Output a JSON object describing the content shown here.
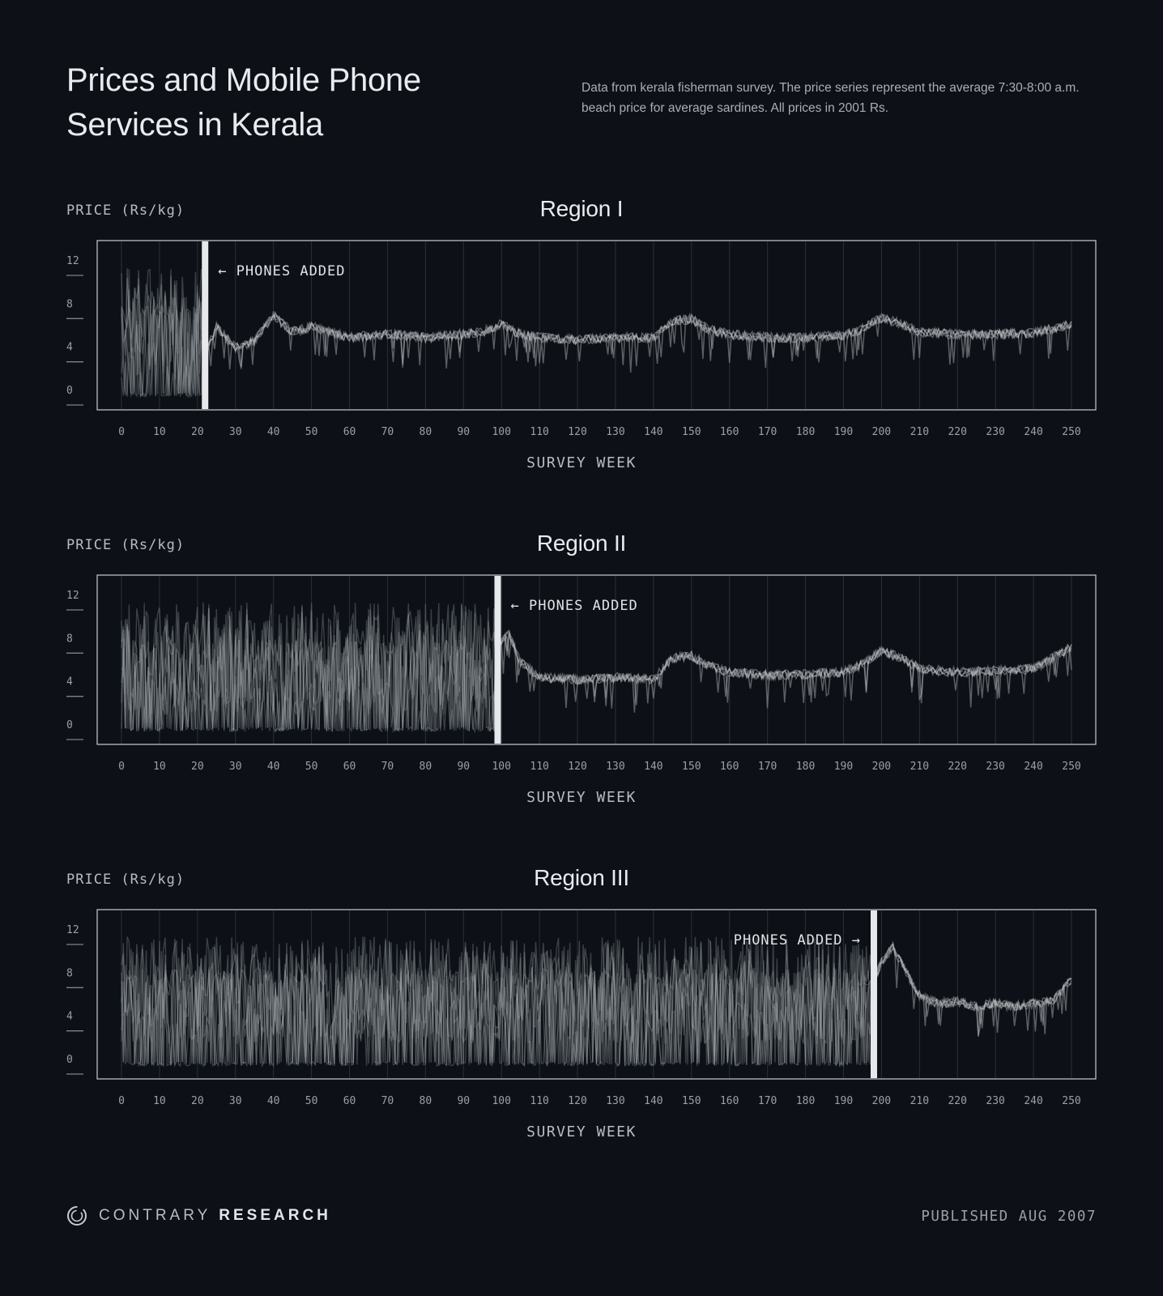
{
  "header": {
    "title": "Prices and Mobile Phone Services in Kerala",
    "subtitle": "Data from kerala fisherman survey. The price series represent the average 7:30-8:00 a.m. beach price for average sardines. All prices in 2001 Rs."
  },
  "chart_data": [
    {
      "type": "line",
      "title": "Region I",
      "ylabel": "PRICE (Rs/kg)",
      "xlabel": "SURVEY WEEK",
      "xlim": [
        0,
        250
      ],
      "ylim": [
        0,
        12
      ],
      "yticks": [
        0,
        4,
        8,
        12
      ],
      "xticks": [
        0,
        10,
        20,
        30,
        40,
        50,
        60,
        70,
        80,
        90,
        100,
        110,
        120,
        130,
        140,
        150,
        160,
        170,
        180,
        190,
        200,
        210,
        220,
        230,
        240,
        250
      ],
      "grid": true,
      "annotation": {
        "text": "← PHONES ADDED",
        "x": 22,
        "side": "right"
      },
      "before": {
        "x_end": 22,
        "range_min": 0,
        "range_max": 12,
        "mean": 5.0
      },
      "after": {
        "x": [
          22,
          25,
          30,
          35,
          40,
          45,
          50,
          60,
          70,
          80,
          90,
          95,
          100,
          105,
          110,
          120,
          130,
          140,
          145,
          150,
          155,
          160,
          170,
          180,
          190,
          195,
          200,
          205,
          210,
          220,
          230,
          240,
          250
        ],
        "y": [
          4.0,
          6.5,
          4.5,
          5.2,
          7.5,
          6.0,
          6.5,
          5.5,
          5.8,
          5.5,
          5.8,
          6.0,
          6.8,
          5.8,
          5.5,
          5.3,
          5.5,
          5.5,
          7.0,
          7.2,
          6.2,
          5.8,
          5.5,
          5.5,
          5.7,
          6.3,
          7.3,
          6.8,
          6.0,
          5.8,
          5.8,
          5.9,
          6.8
        ]
      }
    },
    {
      "type": "line",
      "title": "Region II",
      "ylabel": "PRICE (Rs/kg)",
      "xlabel": "SURVEY WEEK",
      "xlim": [
        0,
        250
      ],
      "ylim": [
        0,
        12
      ],
      "yticks": [
        0,
        4,
        8,
        12
      ],
      "xticks": [
        0,
        10,
        20,
        30,
        40,
        50,
        60,
        70,
        80,
        90,
        100,
        110,
        120,
        130,
        140,
        150,
        160,
        170,
        180,
        190,
        200,
        210,
        220,
        230,
        240,
        250
      ],
      "grid": true,
      "annotation": {
        "text": "← PHONES ADDED",
        "x": 99,
        "side": "right"
      },
      "before": {
        "x_end": 99,
        "range_min": 0,
        "range_max": 12,
        "mean": 5.0
      },
      "after": {
        "x": [
          99,
          102,
          105,
          110,
          120,
          130,
          140,
          145,
          150,
          155,
          160,
          170,
          180,
          190,
          195,
          200,
          205,
          210,
          220,
          230,
          240,
          250
        ],
        "y": [
          8.0,
          9.0,
          6.5,
          5.0,
          4.8,
          5.0,
          4.8,
          6.8,
          7.0,
          6.0,
          5.5,
          5.2,
          5.3,
          5.5,
          6.2,
          7.5,
          6.8,
          5.8,
          5.5,
          5.6,
          5.8,
          7.8
        ]
      }
    },
    {
      "type": "line",
      "title": "Region III",
      "ylabel": "PRICE (Rs/kg)",
      "xlabel": "SURVEY WEEK",
      "xlim": [
        0,
        250
      ],
      "ylim": [
        0,
        12
      ],
      "yticks": [
        0,
        4,
        8,
        12
      ],
      "xticks": [
        0,
        10,
        20,
        30,
        40,
        50,
        60,
        70,
        80,
        90,
        100,
        110,
        120,
        130,
        140,
        150,
        160,
        170,
        180,
        190,
        200,
        210,
        220,
        230,
        240,
        250
      ],
      "grid": true,
      "annotation": {
        "text": "PHONES ADDED →",
        "x": 198,
        "side": "left"
      },
      "before": {
        "x_end": 198,
        "range_min": 0,
        "range_max": 12,
        "mean": 5.5
      },
      "after": {
        "x": [
          198,
          200,
          203,
          206,
          210,
          215,
          220,
          225,
          230,
          235,
          240,
          245,
          250
        ],
        "y": [
          8.0,
          9.5,
          11.0,
          9.0,
          6.5,
          5.8,
          6.0,
          5.5,
          5.8,
          5.5,
          5.8,
          6.0,
          8.0
        ]
      }
    }
  ],
  "footer": {
    "brand_light": "CONTRARY",
    "brand_bold": "RESEARCH",
    "logo_icon": "contrary-logo-icon",
    "published": "PUBLISHED AUG 2007"
  }
}
